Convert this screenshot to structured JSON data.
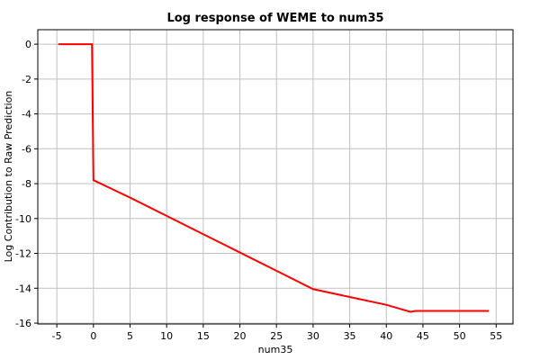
{
  "chart_data": {
    "type": "line",
    "title": "Log response of WEME to num35",
    "x_label": "num35",
    "y_label": "Log Contribution to Raw Prediction",
    "series": [
      {
        "name": "response",
        "color": "#ff0000",
        "x": [
          -4.8,
          -0.2,
          0,
          5,
          10,
          15,
          20,
          25,
          30,
          35,
          40,
          43.3,
          44,
          54
        ],
        "values": [
          0,
          0,
          -7.8,
          -8.8,
          -9.85,
          -10.9,
          -11.95,
          -13,
          -14.05,
          -14.5,
          -14.95,
          -15.35,
          -15.3,
          -15.3
        ]
      }
    ],
    "xlim": [
      -7.6,
      57.3
    ],
    "ylim": [
      -16.05,
      0.83
    ],
    "xticks": [
      -5,
      0,
      5,
      10,
      15,
      20,
      25,
      30,
      35,
      40,
      45,
      50,
      55
    ],
    "yticks": [
      -16,
      -14,
      -12,
      -10,
      -8,
      -6,
      -4,
      -2,
      0
    ],
    "grid": true
  }
}
